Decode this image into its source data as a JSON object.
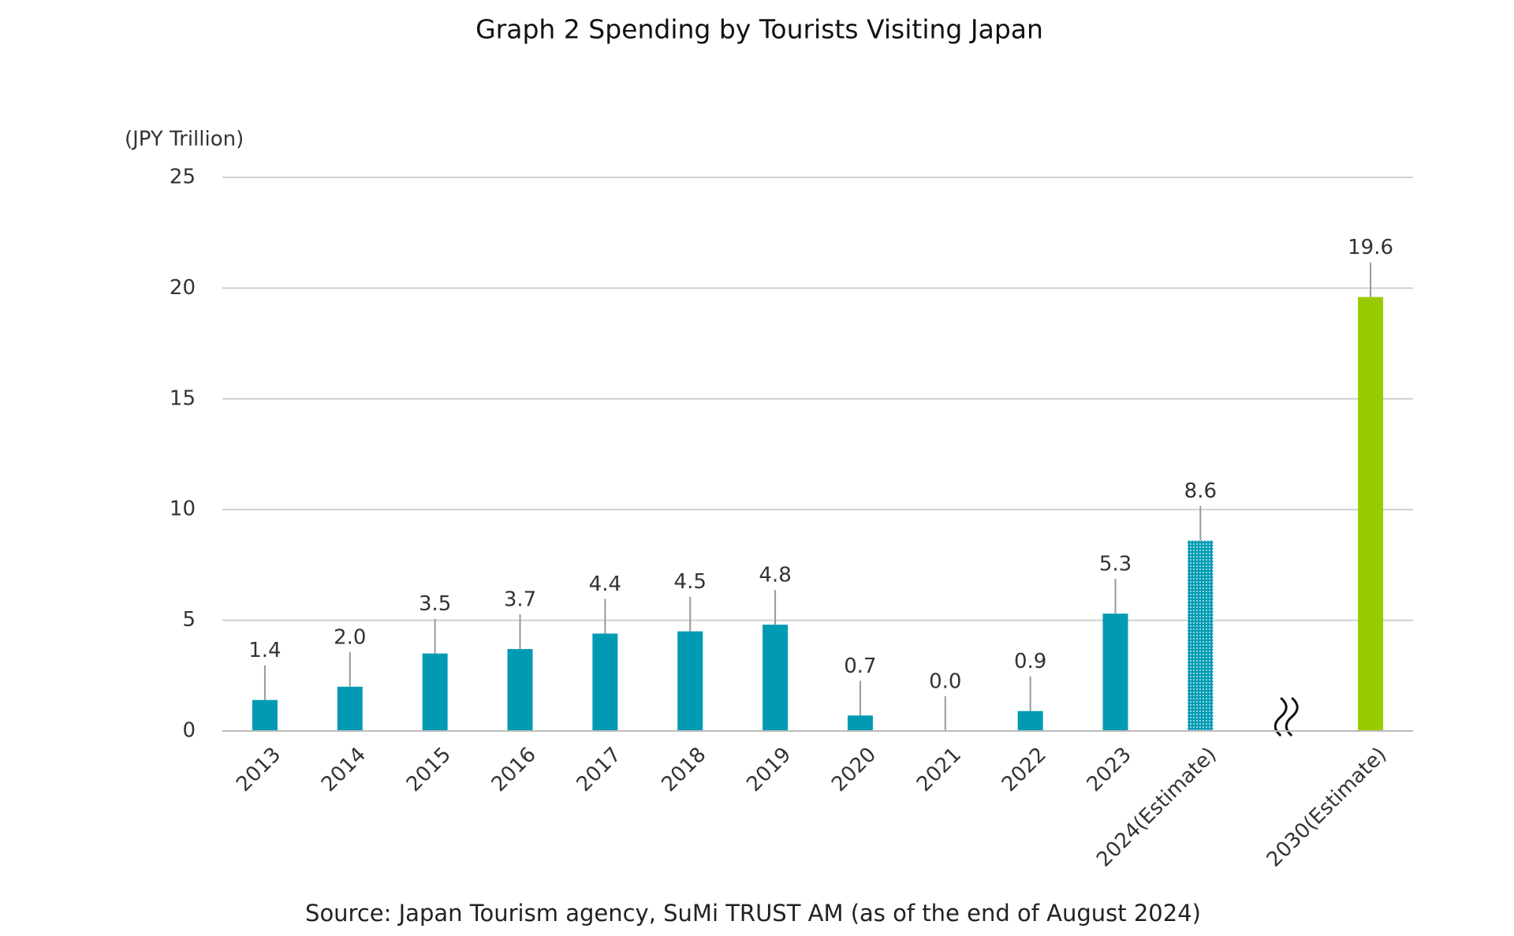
{
  "chart_data": {
    "type": "bar",
    "title": "Graph 2 Spending by Tourists Visiting Japan",
    "y_axis_label": "(JPY Trillion)",
    "source": "Source: Japan Tourism agency, SuMi TRUST AM (as of the end of August 2024)",
    "categories": [
      "2013",
      "2014",
      "2015",
      "2016",
      "2017",
      "2018",
      "2019",
      "2020",
      "2021",
      "2022",
      "2023",
      "2024(Estimate)",
      null,
      "2030(Estimate)"
    ],
    "values": [
      1.4,
      2.0,
      3.5,
      3.7,
      4.4,
      4.5,
      4.8,
      0.7,
      0.0,
      0.9,
      5.3,
      8.6,
      null,
      19.6
    ],
    "value_labels": [
      "1.4",
      "2.0",
      "3.5",
      "3.7",
      "4.4",
      "4.5",
      "4.8",
      "0.7",
      "0.0",
      "0.9",
      "5.3",
      "8.6",
      null,
      "19.6"
    ],
    "colors": [
      "#009bb3",
      "#009bb3",
      "#009bb3",
      "#009bb3",
      "#009bb3",
      "#009bb3",
      "#009bb3",
      "#009bb3",
      "#009bb3",
      "#009bb3",
      "#009bb3",
      "#009bb3",
      null,
      "#99cc00"
    ],
    "dotted": [
      false,
      false,
      false,
      false,
      false,
      false,
      false,
      false,
      false,
      false,
      false,
      true,
      false,
      false
    ],
    "ylim": [
      0,
      25
    ],
    "yticks": [
      0,
      5,
      10,
      15,
      20,
      25
    ],
    "grid": true
  }
}
